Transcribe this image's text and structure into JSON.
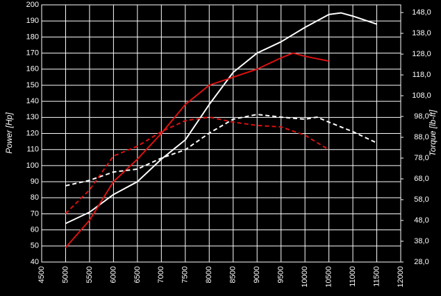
{
  "chart_data": {
    "type": "line",
    "xlabel": null,
    "ylabel": "Power [Hp]",
    "y2label": "Torque [lb-ft]",
    "xlim": [
      4500,
      12000
    ],
    "xticks": [
      4500,
      5000,
      5500,
      6000,
      6500,
      7000,
      7500,
      8000,
      8500,
      9000,
      9500,
      10000,
      10500,
      11000,
      11500,
      12000
    ],
    "ylim": [
      40,
      200
    ],
    "yticks": [
      40,
      50,
      60,
      70,
      80,
      90,
      100,
      110,
      120,
      130,
      140,
      150,
      160,
      170,
      180,
      190,
      200
    ],
    "y2lim": [
      28,
      151.7
    ],
    "y2ticks": [
      {
        "value": 28,
        "label": "28,0"
      },
      {
        "value": 38,
        "label": "38,0"
      },
      {
        "value": 48,
        "label": "48,0"
      },
      {
        "value": 58,
        "label": "58,0"
      },
      {
        "value": 68,
        "label": "68,0"
      },
      {
        "value": 78,
        "label": "78,0"
      },
      {
        "value": 88,
        "label": "88,0"
      },
      {
        "value": 98,
        "label": "98,0"
      },
      {
        "value": 108,
        "label": "108,0"
      },
      {
        "value": 118,
        "label": "118,0"
      },
      {
        "value": 128,
        "label": "128,0"
      },
      {
        "value": 138,
        "label": "138,0"
      },
      {
        "value": 148,
        "label": "148,0"
      }
    ],
    "grid": true,
    "series": [
      {
        "color": "#ffffff",
        "dashed": false,
        "axis": "y",
        "x": [
          5000,
          5500,
          6000,
          6500,
          7000,
          7500,
          8000,
          8500,
          9000,
          9500,
          10000,
          10500,
          10750,
          11000,
          11500
        ],
        "values": [
          64,
          71,
          82,
          90,
          104,
          116,
          138,
          158,
          170,
          177,
          186,
          194,
          195,
          193,
          188
        ]
      },
      {
        "color": "#dd1111",
        "dashed": false,
        "axis": "y",
        "x": [
          5000,
          5500,
          6000,
          6500,
          7000,
          7500,
          8000,
          8500,
          9000,
          9500,
          9750,
          10000,
          10500
        ],
        "values": [
          49,
          66,
          90,
          104,
          120,
          138,
          150,
          155,
          160,
          167,
          170,
          168,
          165
        ]
      },
      {
        "color": "#ffffff",
        "dashed": true,
        "axis": "y2",
        "x": [
          5000,
          5500,
          6000,
          6500,
          7000,
          7500,
          8000,
          8500,
          9000,
          9500,
          10000,
          10250,
          10500,
          11000,
          11500
        ],
        "values": [
          64.7,
          67.3,
          71.3,
          72.7,
          78,
          82,
          90,
          96.7,
          99,
          97.7,
          96.7,
          97.7,
          95.3,
          90.7,
          85.3
        ]
      },
      {
        "color": "#dd1111",
        "dashed": true,
        "axis": "y2",
        "x": [
          5000,
          5500,
          6000,
          6500,
          7000,
          7500,
          8000,
          8500,
          9000,
          9500,
          10000,
          10500
        ],
        "values": [
          51.3,
          62.7,
          79,
          83.7,
          90.7,
          96,
          97.7,
          95.3,
          93.7,
          93,
          89,
          82
        ]
      }
    ]
  }
}
